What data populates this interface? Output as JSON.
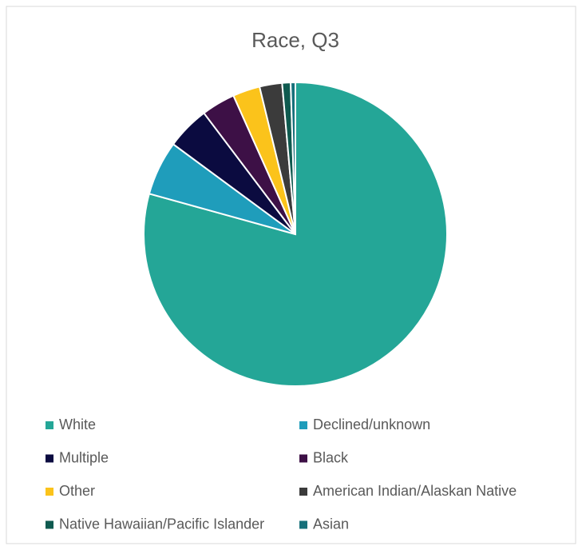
{
  "chart_data": {
    "type": "pie",
    "title": "Race, Q3",
    "categories": [
      "White",
      "Declined/unknown",
      "Multiple",
      "Black",
      "Other",
      "American Indian/Alaskan Native",
      "Native Hawaiian/Pacific Islander",
      "Asian"
    ],
    "values": [
      79.3,
      5.8,
      4.6,
      3.6,
      2.9,
      2.4,
      0.9,
      0.5
    ],
    "colors": [
      "#24a697",
      "#1f9dbb",
      "#0b0b40",
      "#3d1046",
      "#fbc31b",
      "#3b3b3b",
      "#0f5a4f",
      "#16707a"
    ],
    "legend": "bottom"
  }
}
